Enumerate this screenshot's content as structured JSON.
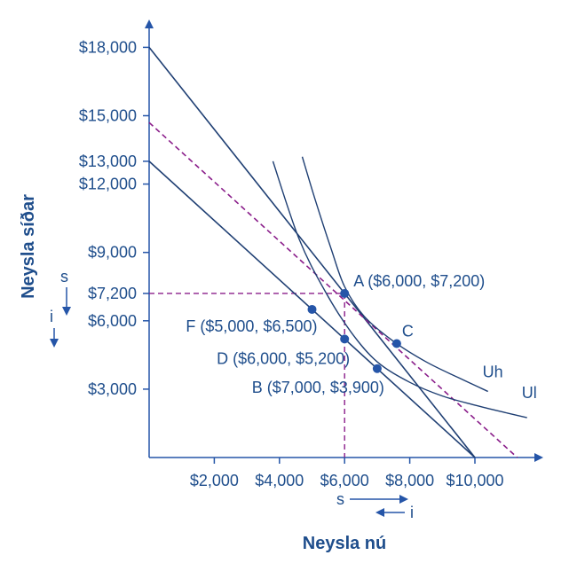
{
  "chart_data": {
    "type": "line",
    "title": "",
    "xlabel": "Neysla nú",
    "ylabel": "Neysla síðar",
    "xlim": [
      0,
      11800
    ],
    "ylim": [
      0,
      19000
    ],
    "x_ticks": [
      {
        "value": 2000,
        "label": "$2,000"
      },
      {
        "value": 4000,
        "label": "$4,000"
      },
      {
        "value": 6000,
        "label": "$6,000"
      },
      {
        "value": 8000,
        "label": "$8,000"
      },
      {
        "value": 10000,
        "label": "$10,000"
      }
    ],
    "y_ticks": [
      {
        "value": 3000,
        "label": "$3,000"
      },
      {
        "value": 6000,
        "label": "$6,000"
      },
      {
        "value": 7200,
        "label": "$7,200"
      },
      {
        "value": 9000,
        "label": "$9,000"
      },
      {
        "value": 12000,
        "label": "$12,000"
      },
      {
        "value": 13000,
        "label": "$13,000"
      },
      {
        "value": 15000,
        "label": "$15,000"
      },
      {
        "value": 18000,
        "label": "$18,000"
      }
    ],
    "budget_lines": [
      {
        "x": [
          0,
          10000
        ],
        "y": [
          18000,
          0
        ],
        "style": "solid"
      },
      {
        "x": [
          0,
          10000
        ],
        "y": [
          13000,
          0
        ],
        "style": "solid"
      },
      {
        "x": [
          0,
          11300
        ],
        "y": [
          14700,
          0
        ],
        "style": "dashed"
      }
    ],
    "indifference_curves": [
      {
        "name": "Uh",
        "x": [
          4700,
          5100,
          5600,
          6000,
          6600,
          7500,
          8500,
          9500,
          10400
        ],
        "y": [
          13200,
          11300,
          9100,
          7500,
          6200,
          5100,
          4200,
          3500,
          2900
        ]
      },
      {
        "name": "Ul",
        "x": [
          3800,
          4600,
          5400,
          6200,
          7000,
          8000,
          9000,
          10000,
          11000,
          11600
        ],
        "y": [
          13000,
          9600,
          7300,
          5500,
          4200,
          3300,
          2700,
          2300,
          1950,
          1750
        ]
      }
    ],
    "points": [
      {
        "label": "A ($6,000, $7,200)",
        "x": 6000,
        "y": 7200
      },
      {
        "label": "C",
        "x": 7600,
        "y": 5000
      },
      {
        "label": "F ($5,000, $6,500)",
        "x": 5000,
        "y": 6500
      },
      {
        "label": "D ($6,000, $5,200)",
        "x": 6000,
        "y": 5200
      },
      {
        "label": "B ($7,000, $3,900)",
        "x": 7000,
        "y": 3900
      }
    ],
    "guides": [
      {
        "x": 6000,
        "y": 7200
      }
    ],
    "effect_arrows": {
      "y_s": "s",
      "y_i": "i",
      "x_s": "s",
      "x_i": "i"
    },
    "grid": false,
    "colors": {
      "ink": "#1f4e8c",
      "budget": "#1f3f73",
      "dashed": "#8a1d8a",
      "point": "#2555a8"
    }
  }
}
